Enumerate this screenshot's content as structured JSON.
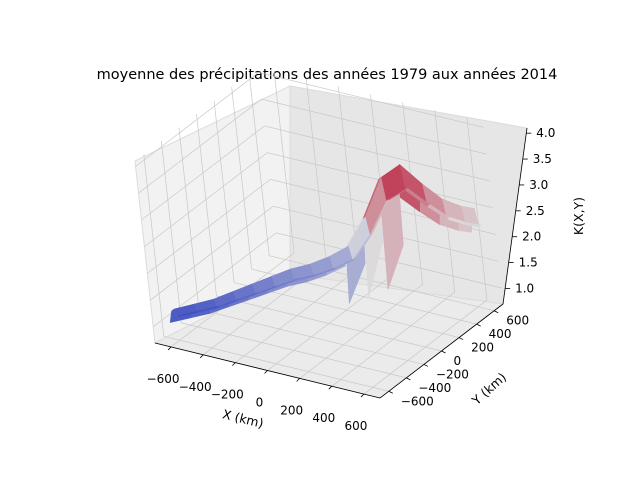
{
  "chart_data": {
    "type": "surface3d",
    "title": "moyenne des précipitations des années 1979 aux années 2014",
    "xlabel": "X (km)",
    "ylabel": "Y (km)",
    "zlabel": "K(X,Y)",
    "xlim": [
      -700,
      700
    ],
    "ylim": [
      -700,
      700
    ],
    "zlim": [
      0.7,
      4.1
    ],
    "xticks": [
      "−600",
      "−400",
      "−200",
      "0",
      "200",
      "400",
      "600"
    ],
    "yticks": [
      "−600",
      "−400",
      "−200",
      "0",
      "200",
      "400",
      "600"
    ],
    "zticks": [
      "1.0",
      "1.5",
      "2.0",
      "2.5",
      "3.0",
      "3.5",
      "4.0"
    ],
    "colormap": "coolwarm",
    "grid": true,
    "surface_profile": {
      "x": [
        -640,
        -560,
        -480,
        -400,
        -320,
        -240,
        -160,
        -80,
        0,
        80,
        160,
        240,
        320,
        400,
        480,
        560,
        620
      ],
      "K_along_band": [
        1.2,
        1.25,
        1.3,
        1.4,
        1.5,
        1.6,
        1.7,
        1.75,
        1.85,
        2.0,
        2.5,
        3.2,
        3.4,
        3.0,
        2.7,
        2.55,
        2.5
      ],
      "band_y_center": [
        -560,
        -480,
        -400,
        -320,
        -240,
        -160,
        -80,
        0,
        80,
        160,
        240,
        320,
        400,
        480,
        540,
        600,
        640
      ],
      "min_K_in_dip": 1.0,
      "max_K": 3.4
    },
    "colors": {
      "low": "#3b4cc0",
      "mid": "#dddddd",
      "high": "#b40426"
    }
  }
}
